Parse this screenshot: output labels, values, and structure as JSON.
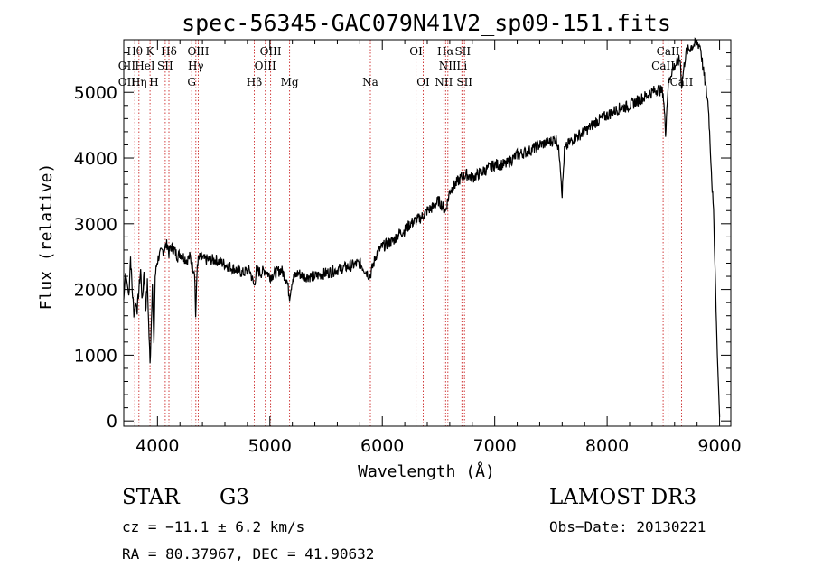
{
  "chart_data": {
    "type": "line",
    "title": "spec-56345-GAC079N41V2_sp09-151.fits",
    "xlabel": "Wavelength (Å)",
    "ylabel": "Flux (relative)",
    "xlim": [
      3700,
      9100
    ],
    "ylim": [
      -80,
      5800
    ],
    "xticks": [
      4000,
      5000,
      6000,
      7000,
      8000,
      9000
    ],
    "yticks": [
      0,
      1000,
      2000,
      3000,
      4000,
      5000
    ],
    "xtick_labels": [
      "4000",
      "5000",
      "6000",
      "7000",
      "8000",
      "9000"
    ],
    "ytick_labels": [
      "0",
      "1000",
      "2000",
      "3000",
      "4000",
      "5000"
    ],
    "series": [
      {
        "name": "spectrum",
        "x": [
          3700,
          3715,
          3730,
          3745,
          3760,
          3775,
          3790,
          3805,
          3820,
          3835,
          3850,
          3865,
          3880,
          3895,
          3910,
          3925,
          3934,
          3945,
          3955,
          3968,
          3980,
          3995,
          4010,
          4030,
          4050,
          4070,
          4090,
          4102,
          4120,
          4150,
          4180,
          4200,
          4230,
          4260,
          4290,
          4310,
          4330,
          4340,
          4355,
          4380,
          4420,
          4470,
          4520,
          4580,
          4640,
          4700,
          4760,
          4820,
          4861,
          4880,
          4920,
          4960,
          5000,
          5050,
          5100,
          5150,
          5175,
          5200,
          5250,
          5300,
          5400,
          5500,
          5600,
          5700,
          5800,
          5890,
          5950,
          6000,
          6050,
          6100,
          6150,
          6200,
          6250,
          6300,
          6350,
          6400,
          6450,
          6500,
          6563,
          6600,
          6650,
          6700,
          6750,
          6800,
          6900,
          7000,
          7100,
          7200,
          7300,
          7400,
          7500,
          7550,
          7580,
          7600,
          7620,
          7650,
          7700,
          7800,
          7900,
          8000,
          8100,
          8200,
          8300,
          8400,
          8450,
          8498,
          8520,
          8542,
          8570,
          8600,
          8650,
          8662,
          8700,
          8750,
          8800,
          8830,
          8850,
          8900,
          8950,
          8980,
          9000
        ],
        "y": [
          1850,
          2250,
          2100,
          1900,
          2500,
          2000,
          1650,
          1800,
          1700,
          2000,
          2300,
          1800,
          2300,
          1700,
          2100,
          1300,
          850,
          1500,
          2100,
          1100,
          2200,
          2400,
          2500,
          2550,
          2600,
          2650,
          2700,
          2550,
          2650,
          2600,
          2500,
          2550,
          2500,
          2450,
          2500,
          2350,
          2300,
          1600,
          2400,
          2500,
          2450,
          2450,
          2450,
          2400,
          2350,
          2300,
          2250,
          2300,
          2050,
          2300,
          2250,
          2300,
          2200,
          2250,
          2300,
          2150,
          1900,
          2150,
          2250,
          2200,
          2200,
          2250,
          2300,
          2350,
          2400,
          2200,
          2550,
          2650,
          2700,
          2750,
          2850,
          2900,
          3000,
          3050,
          3100,
          3200,
          3250,
          3350,
          3200,
          3500,
          3600,
          3700,
          3750,
          3700,
          3800,
          3900,
          3900,
          4050,
          4100,
          4200,
          4250,
          4300,
          4000,
          3450,
          4100,
          4200,
          4300,
          4400,
          4550,
          4650,
          4750,
          4800,
          4900,
          5000,
          5050,
          5000,
          4400,
          5100,
          5300,
          5400,
          5500,
          5100,
          5600,
          5700,
          5750,
          5700,
          5400,
          4800,
          3000,
          1000,
          60
        ]
      }
    ],
    "emission_lines": [
      {
        "label": "Hθ",
        "wavelength": 3798
      },
      {
        "label": "Hη",
        "wavelength": 3835
      },
      {
        "label": "HeI",
        "wavelength": 3889
      },
      {
        "label": "K",
        "wavelength": 3934
      },
      {
        "label": "H",
        "wavelength": 3969
      },
      {
        "label": "SII",
        "wavelength": 4069
      },
      {
        "label": "Hδ",
        "wavelength": 4102
      },
      {
        "label": "G",
        "wavelength": 4304
      },
      {
        "label": "Hγ",
        "wavelength": 4341
      },
      {
        "label": "OIII",
        "wavelength": 4363
      },
      {
        "label": "Hβ",
        "wavelength": 4861
      },
      {
        "label": "OIII",
        "wavelength": 4959
      },
      {
        "label": "OIII",
        "wavelength": 5007
      },
      {
        "label": "Mg",
        "wavelength": 5175
      },
      {
        "label": "Na",
        "wavelength": 5894
      },
      {
        "label": "OI",
        "wavelength": 6300
      },
      {
        "label": "OI",
        "wavelength": 6364
      },
      {
        "label": "NII",
        "wavelength": 6548
      },
      {
        "label": "Hα",
        "wavelength": 6563
      },
      {
        "label": "NII",
        "wavelength": 6583
      },
      {
        "label": "Li",
        "wavelength": 6708
      },
      {
        "label": "SII",
        "wavelength": 6716
      },
      {
        "label": "SII",
        "wavelength": 6731
      },
      {
        "label": "CaII",
        "wavelength": 8498
      },
      {
        "label": "CaII",
        "wavelength": 8542
      },
      {
        "label": "CaII",
        "wavelength": 8662
      }
    ],
    "line_rows": [
      {
        "row": 1,
        "items": [
          {
            "label": "Hθ",
            "wavelength": 3798
          },
          {
            "label": "K",
            "wavelength": 3934
          },
          {
            "label": "Hδ",
            "wavelength": 4102
          },
          {
            "label": "OIII",
            "wavelength": 4363
          },
          {
            "label": "OIII",
            "wavelength": 5007
          },
          {
            "label": "OI",
            "wavelength": 6300
          },
          {
            "label": "Hα",
            "wavelength": 6563
          },
          {
            "label": "SII",
            "wavelength": 6716
          },
          {
            "label": "CaII",
            "wavelength": 8542
          }
        ]
      },
      {
        "row": 2,
        "items": [
          {
            "label": "OII",
            "wavelength": 3727
          },
          {
            "label": "HeI",
            "wavelength": 3889
          },
          {
            "label": "SII",
            "wavelength": 4069
          },
          {
            "label": "Hγ",
            "wavelength": 4341
          },
          {
            "label": "OIII",
            "wavelength": 4959
          },
          {
            "label": "NII",
            "wavelength": 6583
          },
          {
            "label": "Li",
            "wavelength": 6708
          },
          {
            "label": "CaII",
            "wavelength": 8498
          }
        ]
      },
      {
        "row": 3,
        "items": [
          {
            "label": "OII",
            "wavelength": 3727
          },
          {
            "label": "Hη",
            "wavelength": 3835
          },
          {
            "label": "H",
            "wavelength": 3969
          },
          {
            "label": "G",
            "wavelength": 4304
          },
          {
            "label": "Hβ",
            "wavelength": 4861
          },
          {
            "label": "Mg",
            "wavelength": 5175
          },
          {
            "label": "Na",
            "wavelength": 5894
          },
          {
            "label": "OI",
            "wavelength": 6364
          },
          {
            "label": "NII",
            "wavelength": 6548
          },
          {
            "label": "SII",
            "wavelength": 6731
          },
          {
            "label": "CaII",
            "wavelength": 8662
          }
        ]
      }
    ]
  },
  "colors": {
    "emission_line": "#cc2a2a",
    "spectrum": "#000000",
    "axis": "#000000"
  },
  "footer": {
    "object_class": "STAR",
    "subclass": "G3",
    "survey": "LAMOST DR3",
    "cz": "cz = −11.1 ± 6.2 km/s",
    "obs_date": "Obs−Date: 20130221",
    "coords": "RA =  80.37967, DEC =  41.90632"
  }
}
